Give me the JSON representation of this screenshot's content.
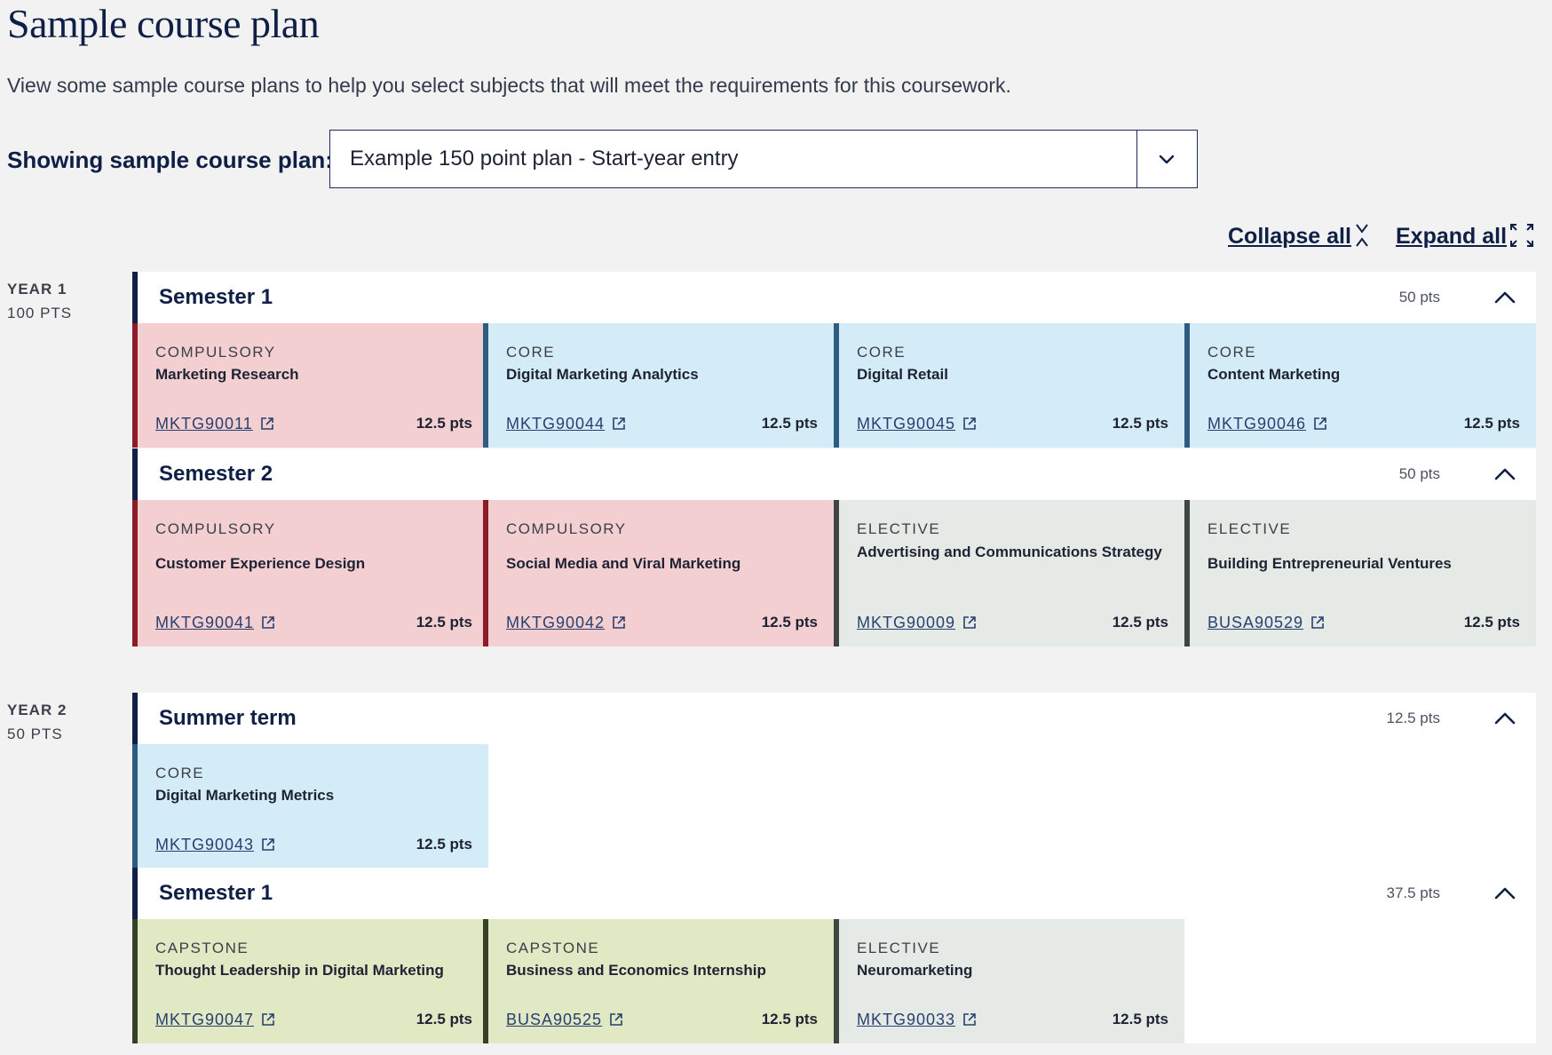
{
  "page": {
    "title": "Sample course plan",
    "intro": "View some sample course plans to help you select subjects that will meet the requirements for this coursework."
  },
  "plan_selector": {
    "label": "Showing sample course plan:",
    "selected": "Example 150 point plan - Start-year entry"
  },
  "controls": {
    "collapse_all": "Collapse all",
    "expand_all": "Expand all"
  },
  "icons": {
    "dropdown": "chevron-down-icon",
    "collapse_all": "collapse-arrows-icon",
    "expand_all": "expand-arrows-icon",
    "term_toggle": "chevron-up-icon",
    "subject_link": "external-link-icon"
  },
  "colors": {
    "compulsory_bg": "#f4cfd2",
    "compulsory_border": "#8c1d26",
    "core_bg": "#d4ecf7",
    "core_border": "#2e5c7e",
    "elective_bg": "#e6eae6",
    "elective_border": "#3f4541",
    "capstone_bg": "#e0e8c4",
    "capstone_border": "#334224",
    "term_accent": "#0f1f45"
  },
  "years": [
    {
      "label": "YEAR 1",
      "points": "100 PTS",
      "terms": [
        {
          "name": "Semester 1",
          "points": "50 pts",
          "subjects": [
            {
              "kind": "COMPULSORY",
              "name": "Marketing Research",
              "code": "MKTG90011",
              "points": "12.5 pts"
            },
            {
              "kind": "CORE",
              "name": "Digital Marketing Analytics",
              "code": "MKTG90044",
              "points": "12.5 pts"
            },
            {
              "kind": "CORE",
              "name": "Digital Retail",
              "code": "MKTG90045",
              "points": "12.5 pts"
            },
            {
              "kind": "CORE",
              "name": "Content Marketing",
              "code": "MKTG90046",
              "points": "12.5 pts"
            }
          ]
        },
        {
          "name": "Semester 2",
          "points": "50 pts",
          "subjects": [
            {
              "kind": "COMPULSORY",
              "name": "Customer Experience Design",
              "code": "MKTG90041",
              "points": "12.5 pts"
            },
            {
              "kind": "COMPULSORY",
              "name": "Social Media and Viral Marketing",
              "code": "MKTG90042",
              "points": "12.5 pts"
            },
            {
              "kind": "ELECTIVE",
              "name": "Advertising and Communications Strategy",
              "code": "MKTG90009",
              "points": "12.5 pts"
            },
            {
              "kind": "ELECTIVE",
              "name": "Building Entrepreneurial Ventures",
              "code": "BUSA90529",
              "points": "12.5 pts"
            }
          ]
        }
      ]
    },
    {
      "label": "YEAR 2",
      "points": "50 PTS",
      "terms": [
        {
          "name": "Summer term",
          "points": "12.5 pts",
          "subjects": [
            {
              "kind": "CORE",
              "name": "Digital Marketing Metrics",
              "code": "MKTG90043",
              "points": "12.5 pts"
            }
          ]
        },
        {
          "name": "Semester 1",
          "points": "37.5 pts",
          "subjects": [
            {
              "kind": "CAPSTONE",
              "name": "Thought Leadership in Digital Marketing",
              "code": "MKTG90047",
              "points": "12.5 pts"
            },
            {
              "kind": "CAPSTONE",
              "name": "Business and Economics Internship",
              "code": "BUSA90525",
              "points": "12.5 pts"
            },
            {
              "kind": "ELECTIVE",
              "name": "Neuromarketing",
              "code": "MKTG90033",
              "points": "12.5 pts"
            }
          ]
        }
      ]
    }
  ]
}
